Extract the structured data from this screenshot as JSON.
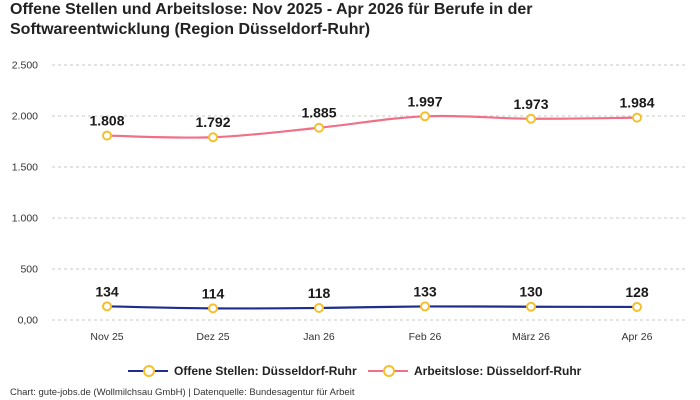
{
  "title": "Offene Stellen und Arbeitslose: Nov 2025 - Apr 2026 für Berufe in der Softwareentwicklung (Region Düsseldorf-Ruhr)",
  "footer": "Chart: gute-jobs.de (Wollmilchsau GmbH) | Datenquelle: Bundesagentur für Arbeit",
  "colors": {
    "offene_stellen": "#1f2e8c",
    "arbeitslose": "#f07088",
    "marker_stroke": "#f5c02d",
    "grid": "#c8c8c8"
  },
  "chart_data": {
    "type": "line",
    "categories": [
      "Nov 25",
      "Dez 25",
      "Jan 26",
      "Feb 26",
      "März 26",
      "Apr 26"
    ],
    "ylim": [
      0,
      2500
    ],
    "yticks": [
      0,
      500,
      1000,
      1500,
      2000,
      2500
    ],
    "ytick_labels": [
      "0,00",
      "500",
      "1.000",
      "1.500",
      "2.000",
      "2.500"
    ],
    "grid": true,
    "legend_position": "bottom",
    "series": [
      {
        "name": "Offene Stellen: Düsseldorf-Ruhr",
        "values": [
          134,
          114,
          118,
          133,
          130,
          128
        ],
        "labels": [
          "134",
          "114",
          "118",
          "133",
          "130",
          "128"
        ]
      },
      {
        "name": "Arbeitslose: Düsseldorf-Ruhr",
        "values": [
          1808,
          1792,
          1885,
          1997,
          1973,
          1984
        ],
        "labels": [
          "1.808",
          "1.792",
          "1.885",
          "1.997",
          "1.973",
          "1.984"
        ]
      }
    ]
  }
}
